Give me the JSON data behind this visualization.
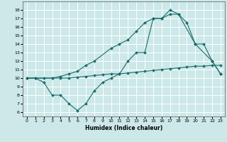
{
  "xlabel": "Humidex (Indice chaleur)",
  "bg_color": "#cce8e8",
  "grid_color": "#ffffff",
  "line_color": "#1a6b6b",
  "xlim": [
    -0.5,
    23.5
  ],
  "ylim": [
    5.5,
    19.0
  ],
  "xticks": [
    0,
    1,
    2,
    3,
    4,
    5,
    6,
    7,
    8,
    9,
    10,
    11,
    12,
    13,
    14,
    15,
    16,
    17,
    18,
    19,
    20,
    21,
    22,
    23
  ],
  "yticks": [
    6,
    7,
    8,
    9,
    10,
    11,
    12,
    13,
    14,
    15,
    16,
    17,
    18
  ],
  "line1_x": [
    0,
    1,
    2,
    3,
    4,
    5,
    6,
    7,
    8,
    9,
    10,
    11,
    12,
    13,
    14,
    15,
    16,
    17,
    18,
    20,
    22,
    23
  ],
  "line1_y": [
    10,
    10,
    9.5,
    8,
    8,
    7,
    6.2,
    7,
    8.5,
    9.5,
    10,
    10.5,
    12,
    13,
    13,
    17,
    17,
    17.5,
    17.5,
    14,
    12,
    10.5
  ],
  "line2_x": [
    0,
    1,
    3,
    4,
    5,
    6,
    7,
    8,
    10,
    11,
    12,
    13,
    14,
    15,
    16,
    17,
    18,
    19,
    20,
    21,
    22,
    23
  ],
  "line2_y": [
    10,
    10,
    10,
    10.2,
    10.5,
    10.8,
    11.5,
    12,
    13.5,
    14,
    14.5,
    15.5,
    16.5,
    17,
    17,
    18,
    17.5,
    16.5,
    14,
    14,
    12,
    10.5
  ],
  "line3_x": [
    0,
    1,
    2,
    3,
    4,
    5,
    6,
    7,
    8,
    9,
    10,
    11,
    12,
    13,
    14,
    15,
    16,
    17,
    18,
    19,
    20,
    21,
    22,
    23
  ],
  "line3_y": [
    10,
    10,
    10,
    10,
    10,
    10,
    10.1,
    10.2,
    10.3,
    10.4,
    10.5,
    10.5,
    10.6,
    10.7,
    10.8,
    10.9,
    11,
    11.1,
    11.2,
    11.3,
    11.4,
    11.4,
    11.5,
    11.5
  ]
}
